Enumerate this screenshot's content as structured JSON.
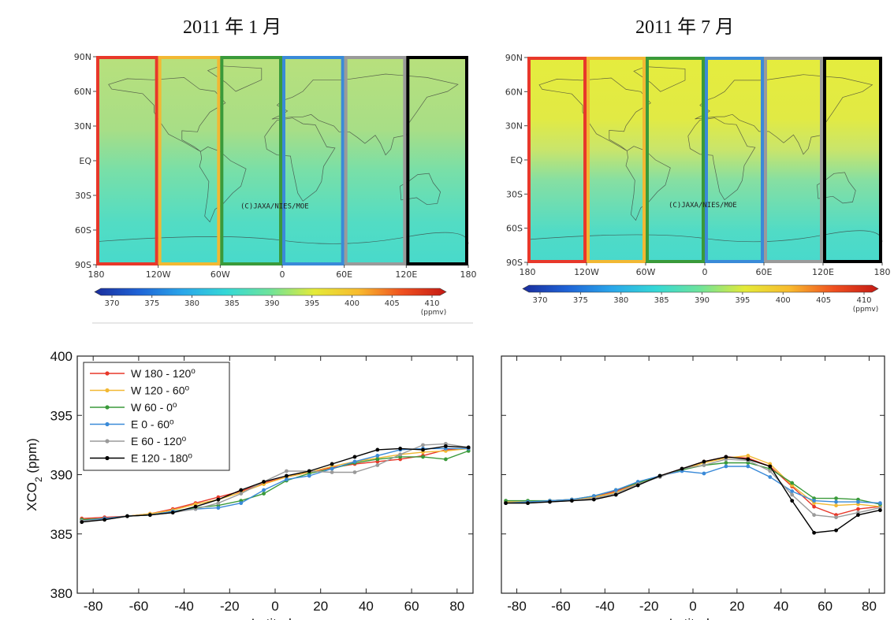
{
  "titles": {
    "left": "2011 年 1 月",
    "right": "2011 年 7 月"
  },
  "maps": {
    "lat_ticks": [
      "90N",
      "60N",
      "30N",
      "EQ",
      "30S",
      "60S",
      "90S"
    ],
    "lon_ticks": [
      "180",
      "120W",
      "60W",
      "0",
      "60E",
      "120E",
      "180"
    ],
    "credit": "(C)JAXA/NIES/MOE",
    "region_colors": [
      "#e8382a",
      "#f2b833",
      "#3a9a3a",
      "#3a8ad8",
      "#9a9a9a",
      "#000000"
    ]
  },
  "colorbar": {
    "ticks": [
      "370",
      "375",
      "380",
      "385",
      "390",
      "395",
      "400",
      "405",
      "410"
    ],
    "unit": "(ppmv)",
    "range": [
      370,
      410
    ],
    "colors": [
      "#1a2d9c",
      "#1f63d6",
      "#2aa6ea",
      "#35d8d6",
      "#6fe39a",
      "#e4ea38",
      "#f8bb2e",
      "#ef5020",
      "#c41a14"
    ]
  },
  "chart_data": [
    {
      "type": "line",
      "title": "2011 年 1 月",
      "xlabel": "Latitude",
      "ylabel": "XCO2 (ppm)",
      "xlim": [
        -87,
        87
      ],
      "ylim": [
        380,
        400
      ],
      "xticks": [
        -80,
        -60,
        -40,
        -20,
        0,
        20,
        40,
        60,
        80
      ],
      "yticks": [
        380,
        385,
        390,
        395,
        400
      ],
      "legend": "top-left",
      "x": [
        -85,
        -75,
        -65,
        -55,
        -45,
        -35,
        -25,
        -15,
        -5,
        5,
        15,
        25,
        35,
        45,
        55,
        65,
        75,
        85
      ],
      "series": [
        {
          "name": "W 180 - 120",
          "color": "#e8382a",
          "values": [
            386.3,
            386.4,
            386.5,
            386.7,
            387.1,
            387.6,
            388.1,
            388.6,
            389.3,
            389.8,
            390.2,
            390.6,
            390.9,
            391.1,
            391.3,
            391.6,
            392.1,
            392.2
          ]
        },
        {
          "name": "W 120 - 60",
          "color": "#f2b833",
          "values": [
            386.2,
            386.3,
            386.5,
            386.7,
            387.0,
            387.5,
            387.9,
            388.5,
            389.2,
            389.8,
            390.2,
            390.7,
            391.1,
            391.4,
            391.7,
            391.9,
            392.0,
            392.2
          ]
        },
        {
          "name": "W 60 - 0",
          "color": "#3a9a3a",
          "values": [
            386.2,
            386.3,
            386.5,
            386.6,
            386.9,
            387.2,
            387.4,
            387.8,
            388.4,
            389.5,
            390.1,
            390.5,
            391.0,
            391.3,
            391.5,
            391.5,
            391.3,
            392.0
          ]
        },
        {
          "name": "E 0 - 60",
          "color": "#3a8ad8",
          "values": [
            386.1,
            386.3,
            386.5,
            386.6,
            386.9,
            387.1,
            387.2,
            387.6,
            388.7,
            389.6,
            389.9,
            390.5,
            391.1,
            391.6,
            392.1,
            392.2,
            392.2,
            392.2
          ]
        },
        {
          "name": "E 60 - 120",
          "color": "#9a9a9a",
          "values": [
            386.1,
            386.2,
            386.5,
            386.6,
            386.8,
            387.1,
            387.6,
            388.4,
            389.4,
            390.3,
            390.3,
            390.2,
            390.2,
            390.8,
            391.7,
            392.5,
            392.6,
            392.3
          ]
        },
        {
          "name": "E 120 - 180",
          "color": "#000000",
          "values": [
            386.0,
            386.2,
            386.5,
            386.6,
            386.8,
            387.3,
            387.9,
            388.7,
            389.4,
            389.9,
            390.3,
            390.9,
            391.5,
            392.1,
            392.2,
            392.1,
            392.4,
            392.3
          ]
        }
      ]
    },
    {
      "type": "line",
      "title": "2011 年 7 月",
      "xlabel": "Latitude",
      "ylabel": "",
      "xlim": [
        -87,
        87
      ],
      "ylim": [
        380,
        400
      ],
      "xticks": [
        -80,
        -60,
        -40,
        -20,
        0,
        20,
        40,
        60,
        80
      ],
      "yticks": [
        380,
        385,
        390,
        395,
        400
      ],
      "legend": "",
      "x": [
        -85,
        -75,
        -65,
        -55,
        -45,
        -35,
        -25,
        -15,
        -5,
        5,
        15,
        25,
        35,
        45,
        55,
        65,
        75,
        85
      ],
      "series": [
        {
          "name": "W 180 - 120",
          "color": "#e8382a",
          "values": [
            387.7,
            387.7,
            387.8,
            387.9,
            388.1,
            388.6,
            389.3,
            389.9,
            390.5,
            391.1,
            391.5,
            391.4,
            390.7,
            389.0,
            387.3,
            386.6,
            387.1,
            387.3
          ]
        },
        {
          "name": "W 120 - 60",
          "color": "#f2b833",
          "values": [
            387.7,
            387.7,
            387.8,
            387.9,
            388.1,
            388.5,
            389.2,
            389.9,
            390.4,
            391.0,
            391.4,
            391.6,
            390.9,
            389.1,
            387.6,
            387.4,
            387.5,
            387.3
          ]
        },
        {
          "name": "W 60 - 0",
          "color": "#3a9a3a",
          "values": [
            387.8,
            387.8,
            387.8,
            387.9,
            388.2,
            388.7,
            389.3,
            389.9,
            390.4,
            390.8,
            391.0,
            391.0,
            390.5,
            389.3,
            388.0,
            388.0,
            387.9,
            387.5
          ]
        },
        {
          "name": "E 0 - 60",
          "color": "#3a8ad8",
          "values": [
            387.6,
            387.7,
            387.8,
            387.9,
            388.2,
            388.7,
            389.4,
            389.9,
            390.3,
            390.1,
            390.7,
            390.7,
            389.8,
            388.6,
            387.8,
            387.7,
            387.7,
            387.6
          ]
        },
        {
          "name": "E 60 - 120",
          "color": "#9a9a9a",
          "values": [
            387.6,
            387.6,
            387.7,
            387.8,
            388.0,
            388.4,
            389.2,
            389.8,
            390.5,
            390.8,
            391.3,
            391.2,
            390.3,
            388.3,
            386.6,
            386.4,
            386.8,
            387.2
          ]
        },
        {
          "name": "E 120 - 180",
          "color": "#000000",
          "values": [
            387.6,
            387.6,
            387.7,
            387.8,
            387.9,
            388.3,
            389.1,
            389.9,
            390.5,
            391.1,
            391.5,
            391.3,
            390.7,
            387.8,
            385.1,
            385.3,
            386.6,
            387.0
          ]
        }
      ]
    }
  ]
}
